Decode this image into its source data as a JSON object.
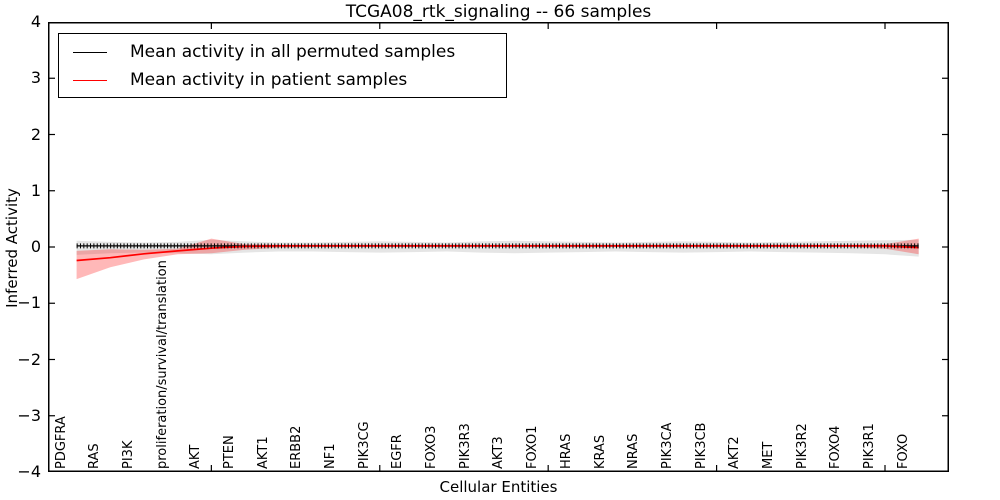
{
  "figure": {
    "title": "TCGA08_rtk_signaling -- 66 samples",
    "xlabel": "Cellular Entities",
    "ylabel": "Inferred Activity"
  },
  "legend": {
    "position": "upper left",
    "items": [
      {
        "label": "Mean activity in all permuted samples",
        "color": "#000000"
      },
      {
        "label": "Mean activity in patient samples",
        "color": "#ff0000"
      }
    ]
  },
  "chart_data": {
    "type": "line",
    "title": "TCGA08_rtk_signaling -- 66 samples",
    "xlabel": "Cellular Entities",
    "ylabel": "Inferred Activity",
    "ylim": [
      -4,
      4
    ],
    "yticks": [
      4,
      3,
      2,
      1,
      0,
      -1,
      -2,
      -3,
      -4
    ],
    "xlim": [
      0.15,
      26.9
    ],
    "xticks_major": [
      5,
      10,
      15,
      20,
      25
    ],
    "grid": false,
    "legend_position": "upper left",
    "categories": [
      "PDGFRA",
      "RAS",
      "PI3K",
      "proliferation/survival/translation",
      "AKT",
      "PTEN",
      "AKT1",
      "ERBB2",
      "NF1",
      "PIK3CG",
      "EGFR",
      "FOXO3",
      "PIK3R3",
      "AKT3",
      "FOXO1",
      "HRAS",
      "KRAS",
      "NRAS",
      "PIK3CA",
      "PIK3CB",
      "AKT2",
      "MET",
      "PIK3R2",
      "FOXO4",
      "PIK3R1",
      "FOXO"
    ],
    "series": [
      {
        "name": "Mean activity in all permuted samples",
        "color": "#000000",
        "marker": "|",
        "band_color": "rgba(0,0,0,0.10)",
        "values": [
          0.02,
          0.02,
          0.02,
          0.02,
          0.02,
          0.02,
          0.02,
          0.02,
          0.02,
          0.02,
          0.02,
          0.02,
          0.02,
          0.02,
          0.02,
          0.02,
          0.02,
          0.02,
          0.02,
          0.02,
          0.02,
          0.02,
          0.02,
          0.02,
          0.02,
          0.02
        ],
        "band_upper": [
          0.11,
          0.09,
          0.08,
          0.09,
          0.13,
          0.1,
          0.08,
          0.08,
          0.09,
          0.1,
          0.09,
          0.08,
          0.1,
          0.11,
          0.1,
          0.09,
          0.08,
          0.09,
          0.1,
          0.09,
          0.08,
          0.09,
          0.1,
          0.11,
          0.12,
          0.13
        ],
        "band_lower": [
          -0.14,
          -0.11,
          -0.1,
          -0.11,
          -0.13,
          -0.1,
          -0.08,
          -0.08,
          -0.09,
          -0.1,
          -0.09,
          -0.08,
          -0.1,
          -0.11,
          -0.1,
          -0.09,
          -0.08,
          -0.09,
          -0.1,
          -0.09,
          -0.08,
          -0.09,
          -0.1,
          -0.11,
          -0.13,
          -0.17
        ]
      },
      {
        "name": "Mean activity in patient samples",
        "color": "#ff0000",
        "marker": "none",
        "band_color": "rgba(255,0,0,0.28)",
        "values": [
          -0.24,
          -0.19,
          -0.12,
          -0.07,
          -0.02,
          0.01,
          0.02,
          0.02,
          0.02,
          0.02,
          0.02,
          0.02,
          0.02,
          0.02,
          0.02,
          0.02,
          0.02,
          0.02,
          0.02,
          0.02,
          0.02,
          0.02,
          0.02,
          0.02,
          0.02,
          -0.01
        ],
        "band_upper": [
          -0.07,
          -0.04,
          -0.05,
          -0.03,
          0.15,
          0.05,
          0.04,
          0.04,
          0.04,
          0.04,
          0.04,
          0.04,
          0.04,
          0.04,
          0.04,
          0.04,
          0.04,
          0.04,
          0.04,
          0.04,
          0.04,
          0.04,
          0.04,
          0.04,
          0.05,
          0.15
        ],
        "band_lower": [
          -0.57,
          -0.36,
          -0.22,
          -0.13,
          -0.11,
          -0.05,
          -0.01,
          0.0,
          0.0,
          0.0,
          0.0,
          0.0,
          0.0,
          0.0,
          0.0,
          0.0,
          0.0,
          0.0,
          0.0,
          0.0,
          0.0,
          0.0,
          0.0,
          0.0,
          -0.03,
          -0.13
        ]
      }
    ]
  }
}
